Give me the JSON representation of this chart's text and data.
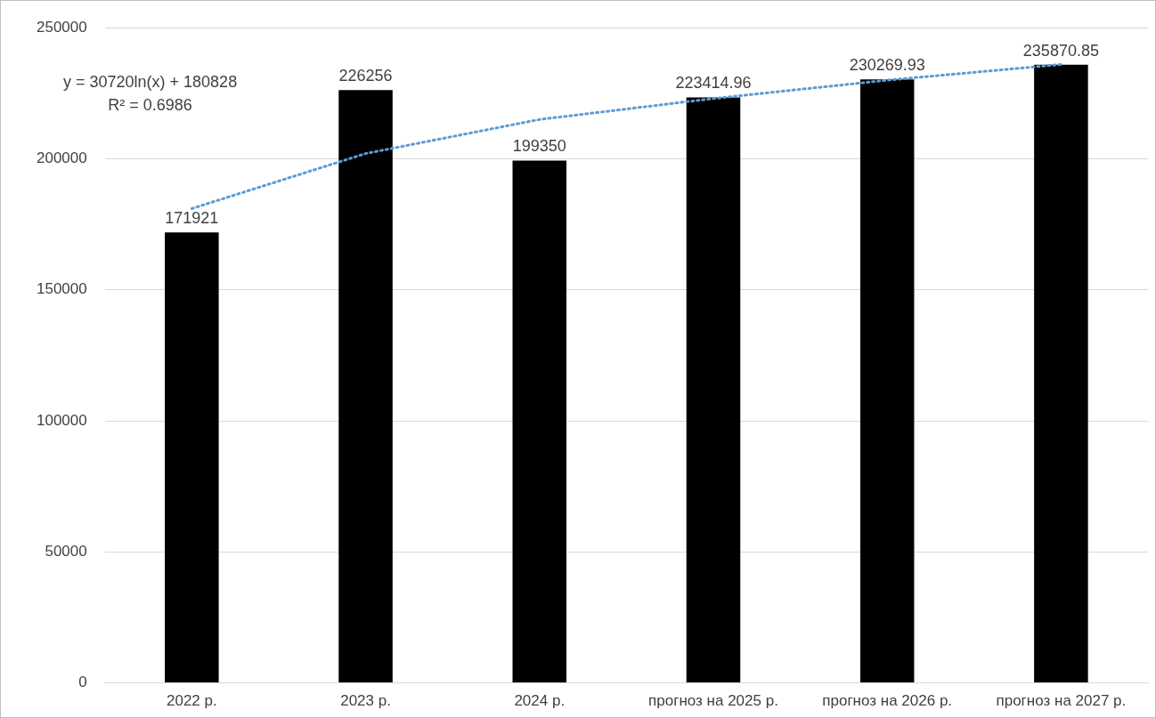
{
  "chart_data": {
    "type": "bar",
    "categories": [
      "2022 р.",
      "2023 р.",
      "2024 р.",
      "прогноз на 2025 р.",
      "прогноз на 2026 р.",
      "прогноз на 2027 р."
    ],
    "series": [
      {
        "color": "#000000",
        "values": [
          171921,
          226256,
          199350,
          223414.96,
          230269.93,
          235870.85
        ],
        "value_labels": [
          "171921",
          "226256",
          "199350",
          "223414.96",
          "230269.93",
          "235870.85"
        ]
      },
      {
        "type": "line",
        "color": "#5b9bd5",
        "line_style": "dotted",
        "marker": "none",
        "x": [
          "2022 р.",
          "2023 р.",
          "2024 р.",
          "прогноз на 2025 р.",
          "прогноз на 2026 р.",
          "прогноз на 2027 р."
        ],
        "values": [
          181000,
          202000,
          215000,
          223000,
          230000,
          236000
        ]
      }
    ],
    "annotations": [
      "y = 30720ln(x) + 180828",
      "R² = 0.6986"
    ],
    "ylim": [
      0,
      250000
    ],
    "yticks": [
      0,
      50000,
      100000,
      150000,
      200000,
      250000
    ],
    "grid": "y",
    "legend": false
  }
}
